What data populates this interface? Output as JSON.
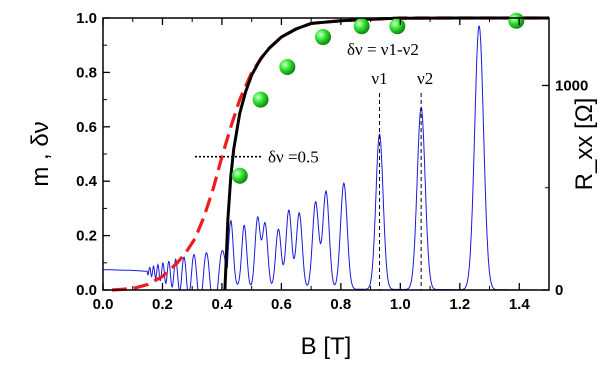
{
  "chart_data": {
    "type": "line",
    "title": "",
    "xlabel": "B [T]",
    "ylabel_left": "m , δν",
    "ylabel_right": "R_xx [Ω]",
    "xlim": [
      0.0,
      1.5
    ],
    "ylim_left": [
      0.0,
      1.0
    ],
    "ylim_right": [
      0,
      1330
    ],
    "x_ticks": [
      "0.0",
      "0.2",
      "0.4",
      "0.6",
      "0.8",
      "1.0",
      "1.2",
      "1.4"
    ],
    "x_tick_values": [
      0.0,
      0.2,
      0.4,
      0.6,
      0.8,
      1.0,
      1.2,
      1.4
    ],
    "y_ticks_left": [
      "0.0",
      "0.2",
      "0.4",
      "0.6",
      "0.8",
      "1.0"
    ],
    "y_tick_values_left": [
      0.0,
      0.2,
      0.4,
      0.6,
      0.8,
      1.0
    ],
    "y_ticks_right": [
      "0",
      "1000"
    ],
    "y_tick_values_right": [
      0,
      1000
    ],
    "grid": false,
    "series": [
      {
        "color": "#000000",
        "style": "solid",
        "axis": "left",
        "x": [
          0.41,
          0.42,
          0.43,
          0.44,
          0.46,
          0.48,
          0.5,
          0.53,
          0.56,
          0.6,
          0.65,
          0.7,
          0.8,
          0.9,
          1.0,
          1.2,
          1.5
        ],
        "y": [
          0.0,
          0.26,
          0.42,
          0.52,
          0.65,
          0.73,
          0.79,
          0.85,
          0.89,
          0.93,
          0.96,
          0.98,
          0.99,
          0.996,
          0.999,
          1.0,
          1.0
        ]
      },
      {
        "color": "#ee1c1c",
        "style": "dashed",
        "axis": "left",
        "x": [
          0.03,
          0.1,
          0.15,
          0.2,
          0.25,
          0.28,
          0.31,
          0.34,
          0.37,
          0.4,
          0.43,
          0.46,
          0.5,
          0.55,
          0.6,
          0.65,
          0.7,
          0.8,
          0.9,
          1.0,
          1.2,
          1.5
        ],
        "y": [
          0.0,
          0.005,
          0.02,
          0.05,
          0.1,
          0.14,
          0.19,
          0.27,
          0.37,
          0.49,
          0.6,
          0.7,
          0.8,
          0.88,
          0.93,
          0.96,
          0.98,
          0.99,
          0.995,
          1.0,
          1.0,
          1.0
        ]
      },
      {
        "color": "#22d322",
        "style": "markers",
        "axis": "left",
        "x": [
          0.46,
          0.53,
          0.62,
          0.74,
          0.87,
          0.99,
          1.39
        ],
        "y": [
          0.42,
          0.7,
          0.82,
          0.93,
          0.97,
          0.97,
          0.99
        ]
      },
      {
        "color": "#1a1adc",
        "style": "solid-thin",
        "axis": "right",
        "baseline_left_units": [
          [
            0.0,
            0.075
          ],
          [
            0.1,
            0.072
          ],
          [
            0.2,
            0.065
          ],
          [
            0.3,
            0.05
          ],
          [
            0.4,
            0.02
          ],
          [
            0.5,
            0.004
          ],
          [
            1.5,
            0.0
          ]
        ],
        "peaks_left_units": [
          [
            0.43,
            0.24
          ],
          [
            0.475,
            0.23
          ],
          [
            0.52,
            0.26
          ],
          [
            0.545,
            0.24
          ],
          [
            0.59,
            0.22
          ],
          [
            0.625,
            0.29
          ],
          [
            0.66,
            0.28
          ],
          [
            0.715,
            0.32
          ],
          [
            0.75,
            0.36
          ],
          [
            0.81,
            0.39
          ],
          [
            0.93,
            0.57
          ],
          [
            1.07,
            0.67
          ],
          [
            1.265,
            0.97
          ]
        ]
      }
    ],
    "annotations": {
      "half_label": "δν =0.5",
      "diff_label": "δν = ν1-ν2",
      "nu1_label": "ν1",
      "nu2_label": "ν2",
      "half_y": 0.49,
      "nu1_x": 0.93,
      "nu2_x": 1.07
    }
  }
}
